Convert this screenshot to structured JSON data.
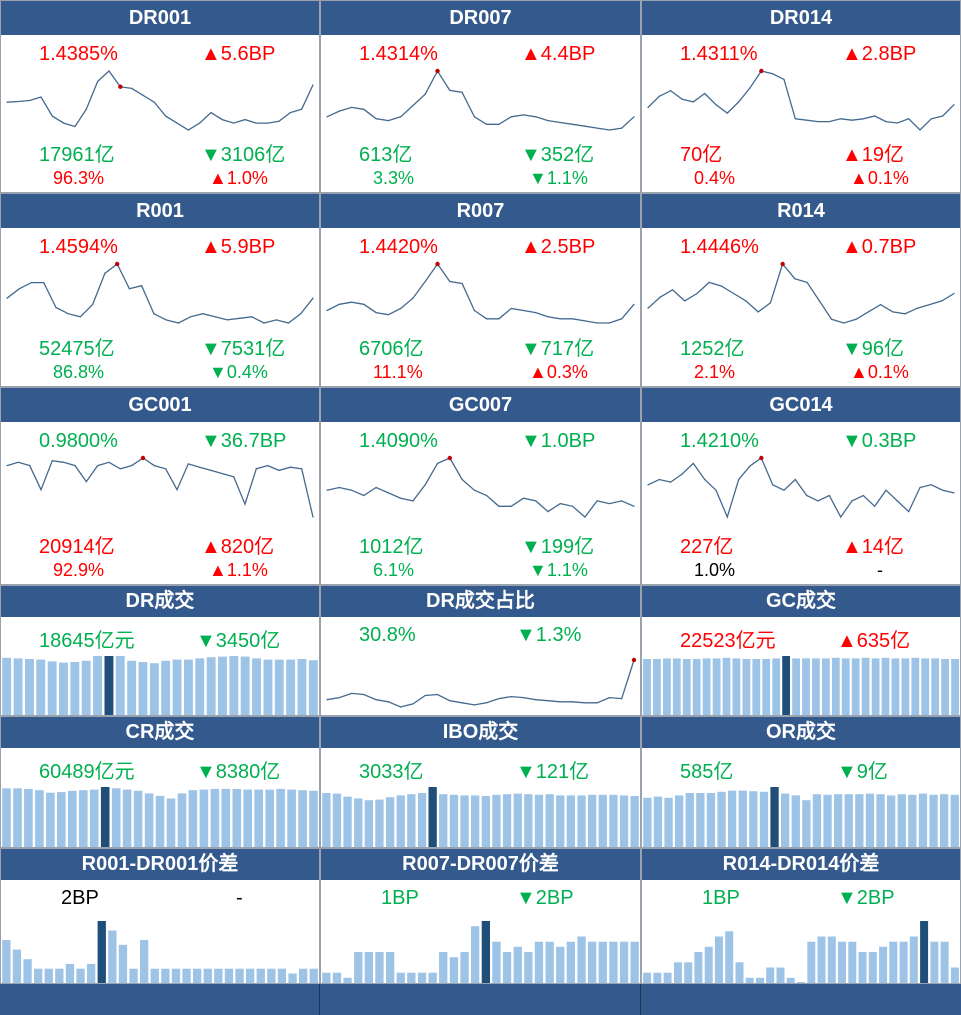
{
  "colors": {
    "header_bg": "#34598c",
    "up": "#ff0000",
    "down": "#00b050",
    "line": "#44698f",
    "bar": "#9dc3e6",
    "bar_highlight": "#1f4e79"
  },
  "panels": [
    {
      "title": "DR001",
      "r1": [
        "1.4385%",
        "▲5.6BP"
      ],
      "r1c": [
        "red",
        "red"
      ],
      "r2": [
        "17961亿",
        "▼3106亿"
      ],
      "r2c": [
        "green",
        "green"
      ],
      "r3": [
        "96.3%",
        "▲1.0%"
      ],
      "r3c": [
        "red",
        "red"
      ]
    },
    {
      "title": "DR007",
      "r1": [
        "1.4314%",
        "▲4.4BP"
      ],
      "r1c": [
        "red",
        "red"
      ],
      "r2": [
        "613亿",
        "▼352亿"
      ],
      "r2c": [
        "green",
        "green"
      ],
      "r3": [
        "3.3%",
        "▼1.1%"
      ],
      "r3c": [
        "green",
        "green"
      ]
    },
    {
      "title": "DR014",
      "r1": [
        "1.4311%",
        "▲2.8BP"
      ],
      "r1c": [
        "red",
        "red"
      ],
      "r2": [
        "70亿",
        "▲19亿"
      ],
      "r2c": [
        "red",
        "red"
      ],
      "r3": [
        "0.4%",
        "▲0.1%"
      ],
      "r3c": [
        "red",
        "red"
      ]
    },
    {
      "title": "R001",
      "r1": [
        "1.4594%",
        "▲5.9BP"
      ],
      "r1c": [
        "red",
        "red"
      ],
      "r2": [
        "52475亿",
        "▼7531亿"
      ],
      "r2c": [
        "green",
        "green"
      ],
      "r3": [
        "86.8%",
        "▼0.4%"
      ],
      "r3c": [
        "green",
        "green"
      ]
    },
    {
      "title": "R007",
      "r1": [
        "1.4420%",
        "▲2.5BP"
      ],
      "r1c": [
        "red",
        "red"
      ],
      "r2": [
        "6706亿",
        "▼717亿"
      ],
      "r2c": [
        "green",
        "green"
      ],
      "r3": [
        "11.1%",
        "▲0.3%"
      ],
      "r3c": [
        "red",
        "red"
      ]
    },
    {
      "title": "R014",
      "r1": [
        "1.4446%",
        "▲0.7BP"
      ],
      "r1c": [
        "red",
        "red"
      ],
      "r2": [
        "1252亿",
        "▼96亿"
      ],
      "r2c": [
        "green",
        "green"
      ],
      "r3": [
        "2.1%",
        "▲0.1%"
      ],
      "r3c": [
        "red",
        "red"
      ]
    },
    {
      "title": "GC001",
      "r1": [
        "0.9800%",
        "▼36.7BP"
      ],
      "r1c": [
        "green",
        "green"
      ],
      "r2": [
        "20914亿",
        "▲820亿"
      ],
      "r2c": [
        "red",
        "red"
      ],
      "r3": [
        "92.9%",
        "▲1.1%"
      ],
      "r3c": [
        "red",
        "red"
      ]
    },
    {
      "title": "GC007",
      "r1": [
        "1.4090%",
        "▼1.0BP"
      ],
      "r1c": [
        "green",
        "green"
      ],
      "r2": [
        "1012亿",
        "▼199亿"
      ],
      "r2c": [
        "green",
        "green"
      ],
      "r3": [
        "6.1%",
        "▼1.1%"
      ],
      "r3c": [
        "green",
        "green"
      ]
    },
    {
      "title": "GC014",
      "r1": [
        "1.4210%",
        "▼0.3BP"
      ],
      "r1c": [
        "green",
        "green"
      ],
      "r2": [
        "227亿",
        "▲14亿"
      ],
      "r2c": [
        "red",
        "red"
      ],
      "r3": [
        "1.0%",
        "-"
      ],
      "r3c": [
        "black",
        "black"
      ]
    },
    {
      "title": "DR成交",
      "r1": [
        "18645亿元",
        "▼3450亿"
      ],
      "r1c": [
        "green",
        "green"
      ]
    },
    {
      "title": "DR成交占比",
      "r1": [
        "30.8%",
        "▼1.3%"
      ],
      "r1c": [
        "green",
        "green"
      ]
    },
    {
      "title": "GC成交",
      "r1": [
        "22523亿元",
        "▲635亿"
      ],
      "r1c": [
        "red",
        "red"
      ]
    },
    {
      "title": "CR成交",
      "r1": [
        "60489亿元",
        "▼8380亿"
      ],
      "r1c": [
        "green",
        "green"
      ]
    },
    {
      "title": "IBO成交",
      "r1": [
        "3033亿",
        "▼121亿"
      ],
      "r1c": [
        "green",
        "green"
      ]
    },
    {
      "title": "OR成交",
      "r1": [
        "585亿",
        "▼9亿"
      ],
      "r1c": [
        "green",
        "green"
      ]
    },
    {
      "title": "R001-DR001价差",
      "r1": [
        "2BP",
        "-"
      ],
      "r1c": [
        "black",
        "black"
      ]
    },
    {
      "title": "R007-DR007价差",
      "r1": [
        "1BP",
        "▼2BP"
      ],
      "r1c": [
        "green",
        "green"
      ]
    },
    {
      "title": "R014-DR014价差",
      "r1": [
        "1BP",
        "▼2BP"
      ],
      "r1c": [
        "green",
        "green"
      ]
    }
  ],
  "chart_data": [
    {
      "panel": "DR001",
      "type": "line",
      "values": [
        1.34,
        1.342,
        1.345,
        1.355,
        1.3,
        1.28,
        1.27,
        1.32,
        1.4,
        1.43,
        1.3846,
        1.38,
        1.36,
        1.34,
        1.3,
        1.28,
        1.26,
        1.28,
        1.31,
        1.29,
        1.28,
        1.29,
        1.28,
        1.28,
        1.285,
        1.31,
        1.32,
        1.39
      ],
      "highlight_index": 10
    },
    {
      "panel": "DR007",
      "type": "line",
      "values": [
        1.31,
        1.325,
        1.335,
        1.33,
        1.305,
        1.3,
        1.31,
        1.34,
        1.37,
        1.4314,
        1.38,
        1.375,
        1.31,
        1.29,
        1.29,
        1.31,
        1.315,
        1.31,
        1.3,
        1.295,
        1.29,
        1.285,
        1.28,
        1.275,
        1.28,
        1.31
      ],
      "highlight_index": 9
    },
    {
      "panel": "DR014",
      "type": "line",
      "values": [
        1.3,
        1.34,
        1.36,
        1.33,
        1.32,
        1.35,
        1.31,
        1.28,
        1.32,
        1.37,
        1.43,
        1.42,
        1.4,
        1.26,
        1.255,
        1.25,
        1.25,
        1.26,
        1.255,
        1.26,
        1.27,
        1.25,
        1.245,
        1.26,
        1.22,
        1.26,
        1.27,
        1.31
      ],
      "highlight_index": 10
    },
    {
      "panel": "R001",
      "type": "line",
      "values": [
        1.35,
        1.38,
        1.4,
        1.4,
        1.32,
        1.3,
        1.29,
        1.33,
        1.43,
        1.46,
        1.38,
        1.39,
        1.3,
        1.28,
        1.27,
        1.29,
        1.3,
        1.29,
        1.28,
        1.285,
        1.29,
        1.27,
        1.28,
        1.27,
        1.3,
        1.35
      ],
      "highlight_index": 9
    },
    {
      "panel": "R007",
      "type": "line",
      "values": [
        1.33,
        1.345,
        1.35,
        1.345,
        1.325,
        1.32,
        1.335,
        1.36,
        1.4,
        1.442,
        1.4,
        1.395,
        1.33,
        1.31,
        1.31,
        1.335,
        1.33,
        1.325,
        1.315,
        1.31,
        1.31,
        1.305,
        1.3,
        1.3,
        1.31,
        1.345
      ],
      "highlight_index": 9
    },
    {
      "panel": "R014",
      "type": "line",
      "values": [
        1.33,
        1.36,
        1.38,
        1.35,
        1.37,
        1.4,
        1.39,
        1.37,
        1.35,
        1.32,
        1.3446,
        1.45,
        1.41,
        1.4,
        1.35,
        1.3,
        1.29,
        1.3,
        1.32,
        1.34,
        1.32,
        1.315,
        1.33,
        1.34,
        1.35,
        1.37
      ],
      "highlight_index": 11
    },
    {
      "panel": "GC001",
      "type": "line",
      "values": [
        1.3,
        1.32,
        1.3,
        1.15,
        1.33,
        1.32,
        1.3,
        1.2,
        1.3,
        1.32,
        1.28,
        1.3,
        1.347,
        1.3,
        1.28,
        1.15,
        1.31,
        1.29,
        1.27,
        1.25,
        1.23,
        1.06,
        1.28,
        1.3,
        1.27,
        1.29,
        1.28,
        0.98
      ],
      "highlight_index": 12
    },
    {
      "panel": "GC007",
      "type": "line",
      "values": [
        1.38,
        1.385,
        1.38,
        1.37,
        1.385,
        1.375,
        1.365,
        1.36,
        1.39,
        1.43,
        1.44,
        1.4,
        1.38,
        1.37,
        1.35,
        1.35,
        1.365,
        1.36,
        1.34,
        1.355,
        1.35,
        1.33,
        1.36,
        1.355,
        1.36,
        1.35
      ],
      "highlight_index": 10
    },
    {
      "panel": "GC014",
      "type": "line",
      "values": [
        1.39,
        1.4,
        1.395,
        1.41,
        1.43,
        1.4,
        1.38,
        1.33,
        1.4,
        1.425,
        1.44,
        1.39,
        1.38,
        1.4,
        1.37,
        1.36,
        1.37,
        1.33,
        1.36,
        1.37,
        1.35,
        1.38,
        1.36,
        1.34,
        1.385,
        1.39,
        1.38,
        1.375
      ],
      "highlight_index": 10
    },
    {
      "panel": "DR成交",
      "type": "bar",
      "values": [
        95,
        94,
        93,
        92,
        89,
        87,
        88,
        90,
        98,
        98,
        98,
        90,
        88,
        86,
        90,
        92,
        92,
        94,
        96,
        97,
        98,
        97,
        94,
        92,
        92,
        92,
        93,
        91
      ],
      "highlight_index": 9
    },
    {
      "panel": "DR成交占比",
      "type": "line",
      "values": [
        27.0,
        27.2,
        27.6,
        27.5,
        27.0,
        26.8,
        26.3,
        26.6,
        27.4,
        27.5,
        26.9,
        26.7,
        26.5,
        26.7,
        27.1,
        27.3,
        27.2,
        27.0,
        26.9,
        26.8,
        26.8,
        26.7,
        26.7,
        27.2,
        27.1,
        30.8
      ],
      "highlight_index": 25
    },
    {
      "panel": "GC成交",
      "type": "bar",
      "values": [
        95,
        95,
        96,
        96,
        95,
        95,
        96,
        96,
        97,
        96,
        95,
        95,
        95,
        96,
        100,
        96,
        96,
        96,
        96,
        97,
        96,
        96,
        97,
        96,
        97,
        96,
        96,
        97,
        96,
        96,
        95,
        95
      ],
      "highlight_index": 14
    },
    {
      "panel": "CR成交",
      "type": "bar",
      "values": [
        92,
        92,
        91,
        89,
        85,
        86,
        88,
        89,
        90,
        94,
        92,
        90,
        88,
        84,
        80,
        76,
        84,
        89,
        90,
        91,
        91,
        91,
        90,
        90,
        90,
        91,
        90,
        89,
        88
      ],
      "highlight_index": 9
    },
    {
      "panel": "IBO成交",
      "type": "bar",
      "values": [
        90,
        89,
        84,
        81,
        78,
        79,
        83,
        86,
        88,
        90,
        100,
        88,
        87,
        86,
        86,
        85,
        87,
        88,
        89,
        88,
        87,
        88,
        86,
        86,
        86,
        87,
        87,
        87,
        86,
        85
      ],
      "highlight_index": 10
    },
    {
      "panel": "OR成交",
      "type": "bar",
      "values": [
        82,
        84,
        82,
        86,
        90,
        90,
        90,
        92,
        94,
        94,
        93,
        92,
        100,
        89,
        86,
        78,
        88,
        87,
        88,
        88,
        88,
        89,
        88,
        86,
        88,
        87,
        89,
        87,
        88,
        87
      ],
      "highlight_index": 12
    },
    {
      "panel": "R001-DR001价差",
      "type": "bar",
      "values": [
        9,
        7,
        5,
        3,
        3,
        3,
        4,
        3,
        4,
        13,
        11,
        8,
        3,
        9,
        3,
        3,
        3,
        3,
        3,
        3,
        3,
        3,
        3,
        3,
        3,
        3,
        3,
        2,
        3,
        3
      ],
      "highlight_index": 9
    },
    {
      "panel": "R007-DR007价差",
      "type": "bar",
      "values": [
        2,
        2,
        1,
        6,
        6,
        6,
        6,
        2,
        2,
        2,
        2,
        6,
        5,
        6,
        11,
        12,
        8,
        6,
        7,
        6,
        8,
        8,
        7,
        8,
        9,
        8,
        8,
        8,
        8,
        8
      ],
      "highlight_index": 15
    },
    {
      "panel": "R014-DR014价差",
      "type": "bar",
      "values": [
        2,
        2,
        2,
        4,
        4,
        6,
        7,
        9,
        10,
        4,
        1,
        1,
        3,
        3,
        1,
        0,
        8,
        9,
        9,
        8,
        8,
        6,
        6,
        7,
        8,
        8,
        9,
        12,
        8,
        8,
        3
      ],
      "highlight_index": 27
    }
  ]
}
